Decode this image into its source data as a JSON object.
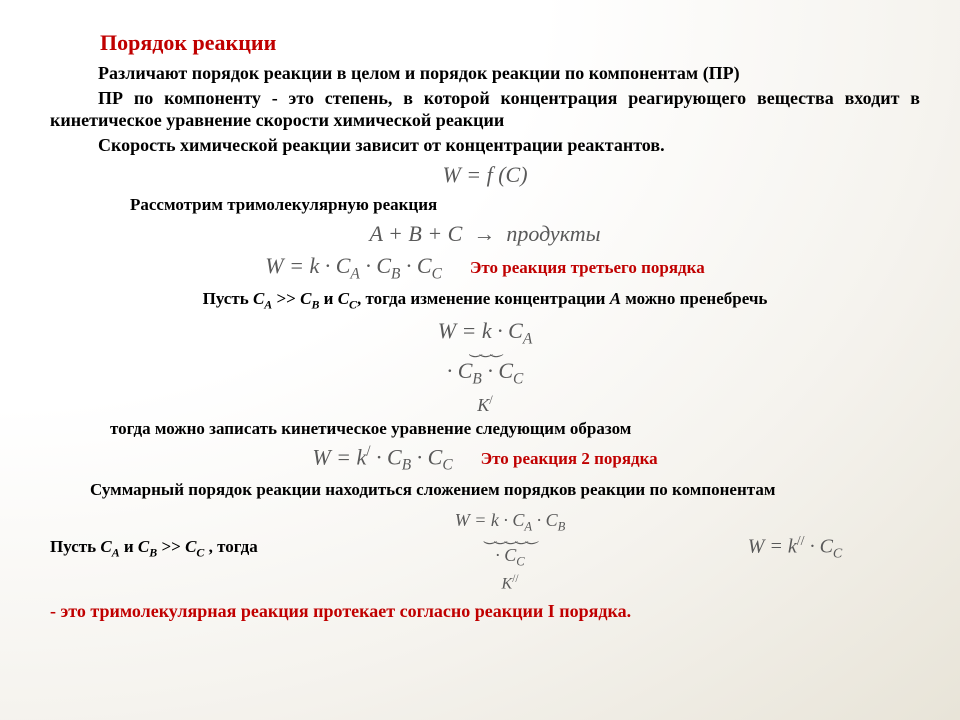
{
  "title": "Порядок реакции",
  "p1": "Различают порядок реакции в целом и порядок реакции по компонентам (ПР)",
  "p2": "ПР по компоненту - это степень, в которой концентрация реагирующего вещества входит в кинетическое уравнение скорости  химической реакции",
  "p3": "Скорость химической реакции зависит от концентрации реактантов.",
  "eq1": "W = f (C)",
  "p4": "Рассмотрим тримолекулярную реакция",
  "eq2_lhs": "A + B + C",
  "eq2_rhs": "продукты",
  "eq3": "W = k · C",
  "note1": "Это реакция третьего порядка",
  "p5_a": "Пусть ",
  "p5_b": " >> ",
  "p5_c": " и ",
  "p5_d": " тогда изменение концентрации ",
  "p5_e": " можно пренебречь",
  "klabel1": "K",
  "p6": "тогда можно записать кинетическое уравнение следующим образом",
  "eq5_pre": "W = k",
  "note2": "Это реакция 2 порядка",
  "p7": "Суммарный порядок реакции находиться сложением порядков реакции по компонентам",
  "p8_a": "Пусть ",
  "p8_b": " и ",
  "p8_c": " >> ",
  "p8_d": ", тогда",
  "klabel2": "K",
  "eq_last": "W = k",
  "bottom": "- это тримолекулярная реакция протекает согласно реакции  I порядка.",
  "sym": {
    "A": "A",
    "B": "B",
    "C": "C",
    "CA": "C",
    "CB": "C",
    "CC": "C"
  },
  "colors": {
    "red": "#c00000",
    "eq": "#595959"
  }
}
